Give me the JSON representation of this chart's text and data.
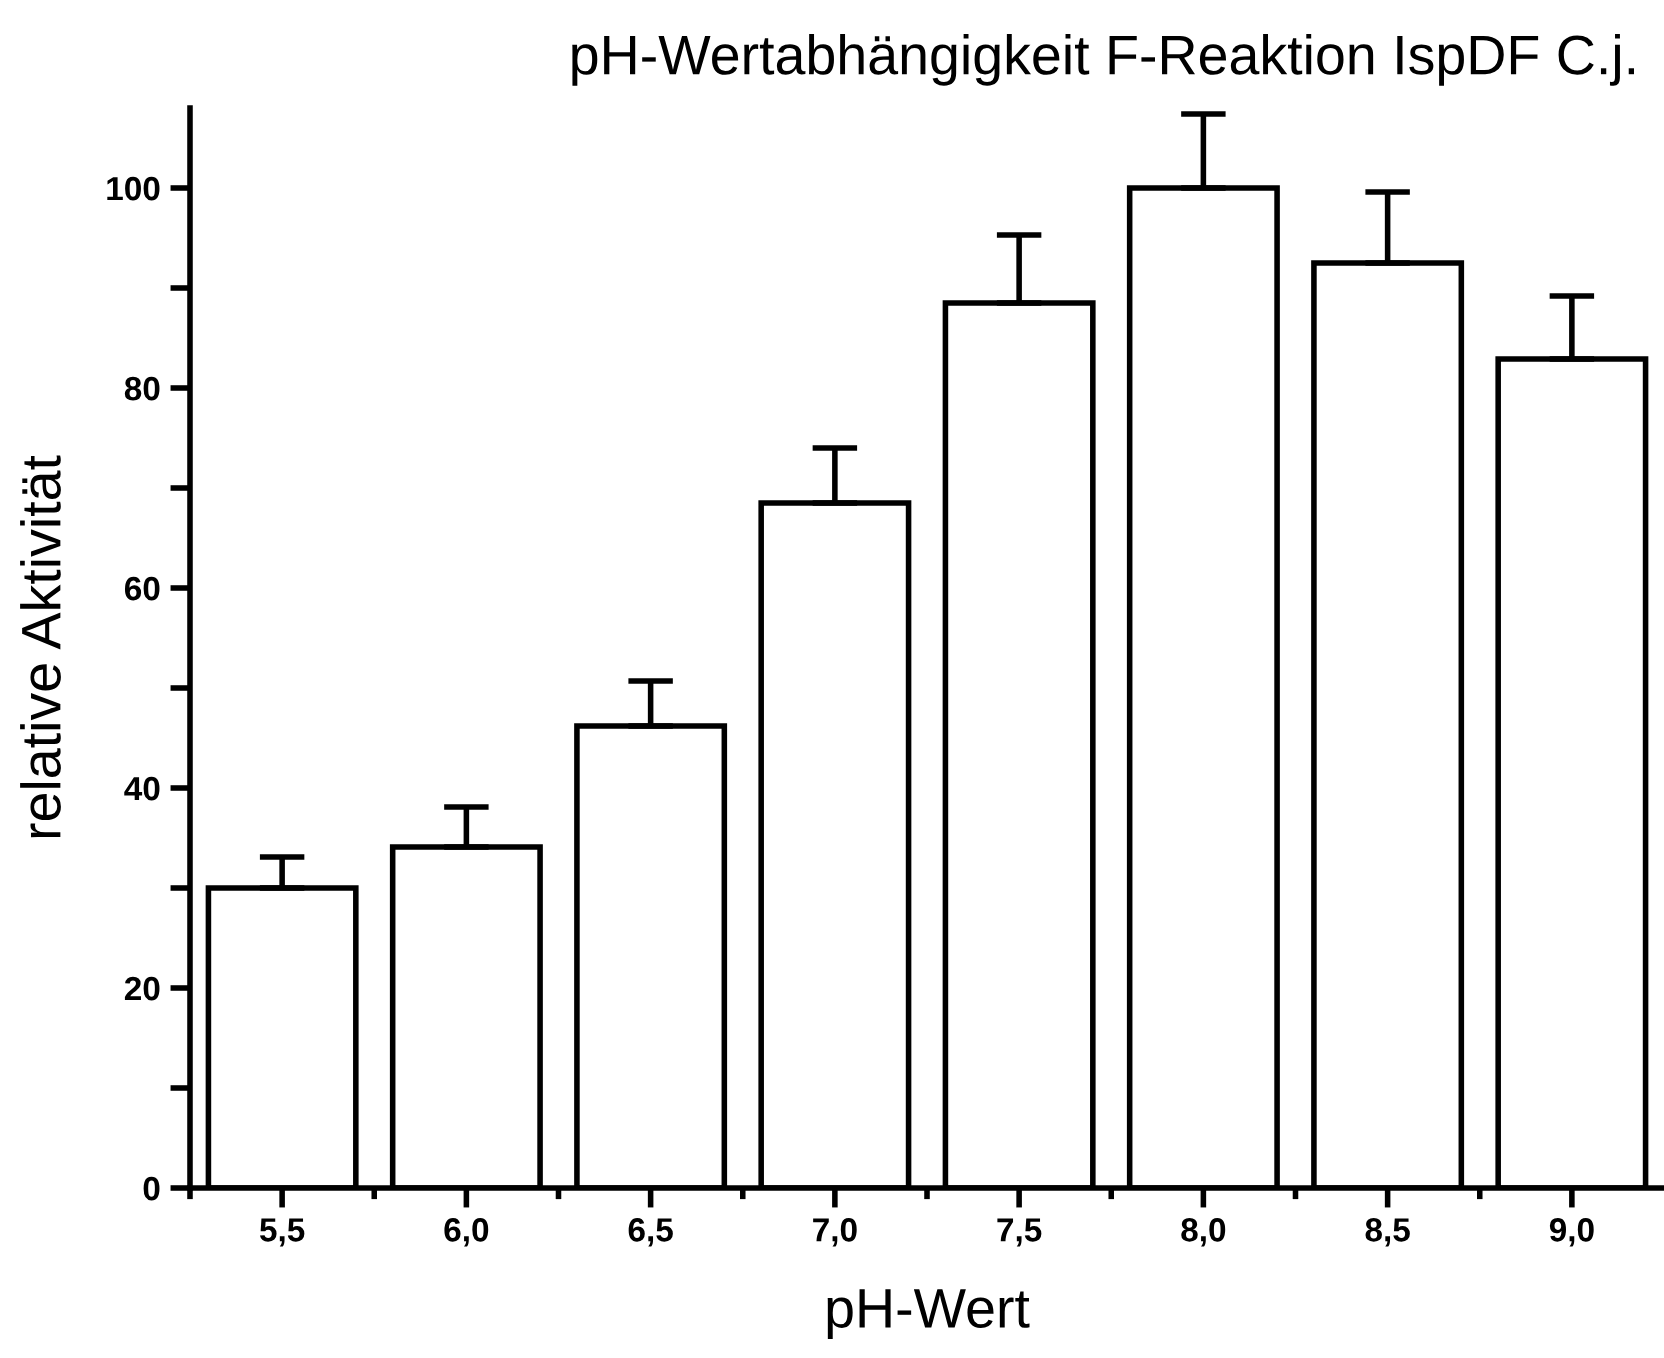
{
  "chart_data": {
    "type": "bar",
    "title": "pH-Wertabhängigkeit F-Reaktion IspDF C.j.",
    "xlabel": "pH-Wert",
    "ylabel": "relative Aktivität",
    "categories": [
      "5,5",
      "6,0",
      "6,5",
      "7,0",
      "7,5",
      "8,0",
      "8,5",
      "9,0"
    ],
    "values": [
      30.0,
      34.1,
      46.2,
      68.5,
      88.5,
      100,
      92.5,
      82.9
    ],
    "errors": [
      [
        30.0,
        33.1
      ],
      [
        34.1,
        38.1
      ],
      [
        46.2,
        50.7
      ],
      [
        68.5,
        74.0
      ],
      [
        88.5,
        95.3
      ],
      [
        100,
        107.4
      ],
      [
        92.5,
        99.6
      ],
      [
        82.9,
        89.2
      ]
    ],
    "color": "#ffffff",
    "ylim": [
      0,
      108
    ],
    "yticks": [
      0,
      {
        "value": 10,
        "label": null
      },
      20,
      {
        "value": 30,
        "label": null
      },
      40,
      {
        "value": 50,
        "label": null
      },
      60,
      {
        "value": 70,
        "label": null
      },
      80,
      {
        "value": 90,
        "label": null
      },
      100
    ],
    "grid": false,
    "legend": false
  }
}
